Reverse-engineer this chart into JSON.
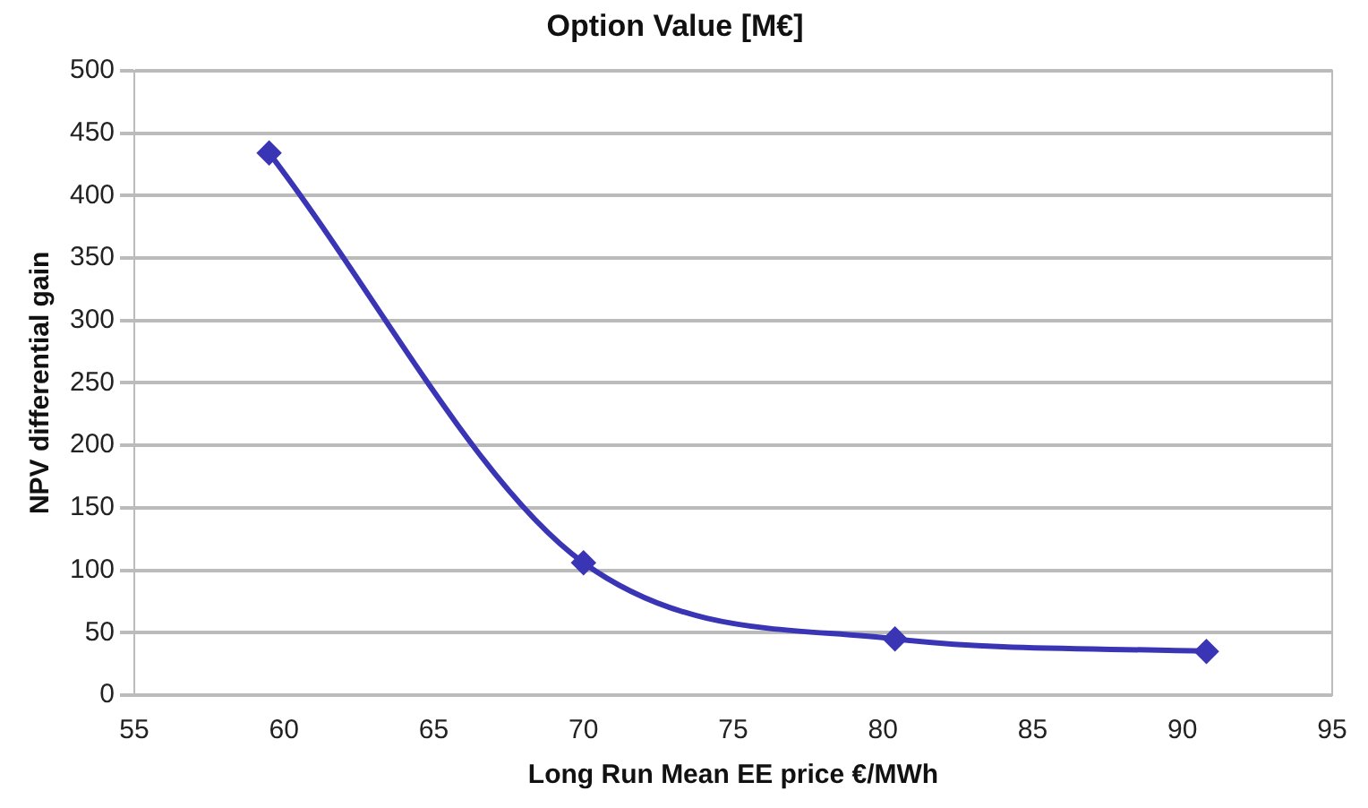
{
  "chart_data": {
    "type": "line",
    "title": "Option Value [M€]",
    "xlabel": "Long Run Mean EE price €/MWh",
    "ylabel": "NPV differential gain",
    "x": [
      59.5,
      70,
      80.4,
      90.8
    ],
    "series": [
      {
        "color": "#3a35b5",
        "values": [
          434,
          106,
          45,
          35
        ]
      }
    ],
    "xlim": [
      55,
      95
    ],
    "xticks": [
      55,
      60,
      65,
      70,
      75,
      80,
      85,
      90,
      95
    ],
    "ylim": [
      0,
      500
    ],
    "yticks": [
      0,
      50,
      100,
      150,
      200,
      250,
      300,
      350,
      400,
      450,
      500
    ],
    "grid": "y",
    "legend": false,
    "marker": "diamond",
    "line_style": "solid"
  }
}
